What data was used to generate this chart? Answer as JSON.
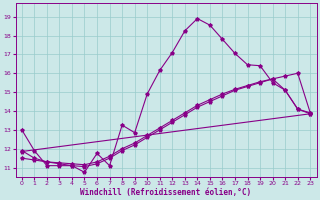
{
  "xlabel": "Windchill (Refroidissement éolien,°C)",
  "bg_color": "#cce8e8",
  "line_color": "#880088",
  "grid_color": "#99cccc",
  "xticks": [
    0,
    1,
    2,
    3,
    4,
    5,
    6,
    7,
    8,
    9,
    10,
    11,
    12,
    13,
    14,
    15,
    16,
    17,
    18,
    19,
    20,
    21,
    22,
    23
  ],
  "yticks": [
    11,
    12,
    13,
    14,
    15,
    16,
    17,
    18,
    19
  ],
  "ylim": [
    10.5,
    19.7
  ],
  "xlim": [
    -0.5,
    23.5
  ],
  "line1_x": [
    0,
    1,
    2,
    3,
    4,
    5,
    6,
    7,
    8,
    9,
    10,
    11,
    12,
    13,
    14,
    15,
    16,
    17,
    18,
    19,
    20,
    21,
    22,
    23
  ],
  "line1_y": [
    13.0,
    11.9,
    11.1,
    11.1,
    11.1,
    10.75,
    11.75,
    11.1,
    13.25,
    12.85,
    14.9,
    16.15,
    17.1,
    18.25,
    18.9,
    18.55,
    17.8,
    17.05,
    16.45,
    16.4,
    15.5,
    15.1,
    14.1,
    13.9
  ],
  "line2_x": [
    0,
    1,
    2,
    3,
    4,
    5,
    6,
    7,
    8,
    9,
    10,
    11,
    12,
    13,
    14,
    15,
    16,
    17,
    18,
    19,
    20,
    21,
    22,
    23
  ],
  "line2_y": [
    11.9,
    11.5,
    11.3,
    11.2,
    11.1,
    11.05,
    11.2,
    11.5,
    11.9,
    12.2,
    12.6,
    13.0,
    13.4,
    13.8,
    14.2,
    14.5,
    14.8,
    15.1,
    15.3,
    15.5,
    15.7,
    15.85,
    16.0,
    13.9
  ],
  "line3_x": [
    0,
    1,
    2,
    3,
    4,
    5,
    6,
    7,
    8,
    9,
    10,
    11,
    12,
    13,
    14,
    15,
    16,
    17,
    18,
    19,
    20,
    21,
    22,
    23
  ],
  "line3_y": [
    11.5,
    11.4,
    11.3,
    11.25,
    11.2,
    11.15,
    11.3,
    11.6,
    12.0,
    12.3,
    12.7,
    13.1,
    13.5,
    13.9,
    14.3,
    14.6,
    14.9,
    15.15,
    15.35,
    15.55,
    15.7,
    15.1,
    14.1,
    13.85
  ],
  "line4_x": [
    0,
    23
  ],
  "line4_y": [
    11.85,
    13.85
  ]
}
